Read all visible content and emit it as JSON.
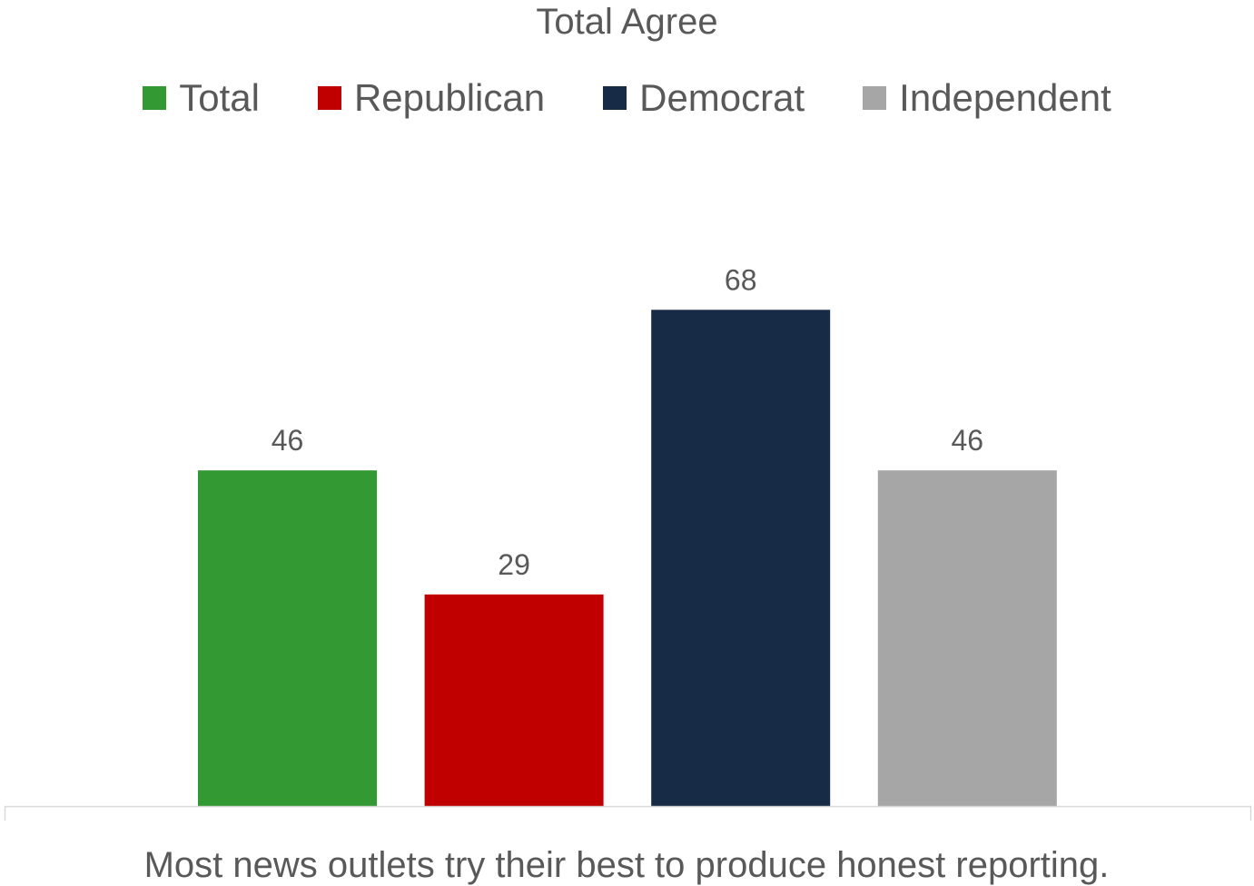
{
  "chart_data": {
    "type": "bar",
    "title": "Total Agree",
    "categories": [
      "Most news outlets try their best to produce honest reporting."
    ],
    "series": [
      {
        "name": "Total",
        "values": [
          46
        ],
        "color": "#339933"
      },
      {
        "name": "Republican",
        "values": [
          29
        ],
        "color": "#c00000"
      },
      {
        "name": "Democrat",
        "values": [
          68
        ],
        "color": "#172a46"
      },
      {
        "name": "Independent",
        "values": [
          46
        ],
        "color": "#a6a6a6"
      }
    ],
    "ylim": [
      0,
      100
    ],
    "grid": false,
    "legend_position": "top",
    "data_labels": true
  }
}
